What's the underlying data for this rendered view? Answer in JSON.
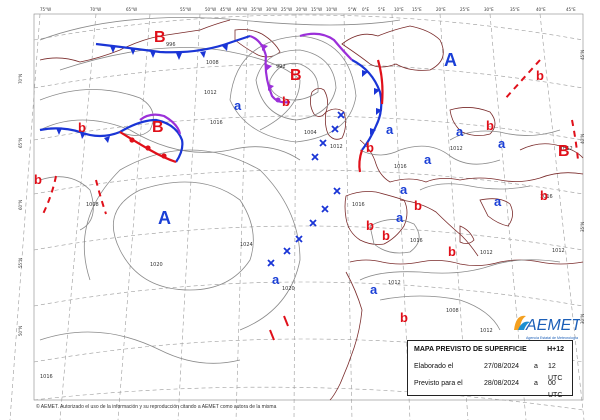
{
  "top_labels": [
    "75°W",
    "70°W",
    "65°W",
    "55°W",
    "50°W",
    "45°W",
    "40°W",
    "35°W",
    "30°W",
    "25°W",
    "20°W",
    "15°W",
    "10°W",
    "5°W",
    "0°E",
    "5°E",
    "10°E",
    "15°E",
    "20°E",
    "25°E",
    "30°E",
    "35°E",
    "40°E",
    "45°E"
  ],
  "side_labels": [
    "70°N",
    "65°N",
    "60°N",
    "55°N",
    "50°N",
    "45°N",
    "40°N",
    "35°N",
    "30°N"
  ],
  "pressure_centers": [
    {
      "letter": "A",
      "kind": "high",
      "big": true
    },
    {
      "letter": "A",
      "kind": "high",
      "big": true
    },
    {
      "letter": "B",
      "kind": "low",
      "big": true
    },
    {
      "letter": "B",
      "kind": "low",
      "big": true
    },
    {
      "letter": "B",
      "kind": "low",
      "big": true
    },
    {
      "letter": "B",
      "kind": "low",
      "big": true
    },
    {
      "letter": "b",
      "kind": "low",
      "big": false
    },
    {
      "letter": "b",
      "kind": "low",
      "big": false
    },
    {
      "letter": "b",
      "kind": "low",
      "big": false
    },
    {
      "letter": "b",
      "kind": "low",
      "big": false
    },
    {
      "letter": "b",
      "kind": "low",
      "big": false
    },
    {
      "letter": "b",
      "kind": "low",
      "big": false
    },
    {
      "letter": "b",
      "kind": "low",
      "big": false
    },
    {
      "letter": "b",
      "kind": "low",
      "big": false
    },
    {
      "letter": "b",
      "kind": "low",
      "big": false
    },
    {
      "letter": "b",
      "kind": "low",
      "big": false
    },
    {
      "letter": "b",
      "kind": "low",
      "big": false
    },
    {
      "letter": "b",
      "kind": "low",
      "big": false
    },
    {
      "letter": "a",
      "kind": "high",
      "big": false
    },
    {
      "letter": "a",
      "kind": "high",
      "big": false
    },
    {
      "letter": "a",
      "kind": "high",
      "big": false
    },
    {
      "letter": "a",
      "kind": "high",
      "big": false
    },
    {
      "letter": "a",
      "kind": "high",
      "big": false
    },
    {
      "letter": "a",
      "kind": "high",
      "big": false
    },
    {
      "letter": "a",
      "kind": "high",
      "big": false
    },
    {
      "letter": "a",
      "kind": "high",
      "big": false
    },
    {
      "letter": "a",
      "kind": "high",
      "big": false
    },
    {
      "letter": "a",
      "kind": "high",
      "big": false
    }
  ],
  "isobar_labels": [
    "996",
    "992",
    "1008",
    "1012",
    "1004",
    "1016",
    "1020",
    "1012",
    "1024",
    "1008",
    "1012",
    "1016",
    "1016",
    "1016",
    "1012",
    "1012",
    "1008",
    "1012",
    "1016",
    "1012",
    "1020",
    "1016",
    "1012"
  ],
  "info_panel": {
    "title": "MAPA PREVISTO DE SUPERFICIE",
    "forecast_step": "H+12",
    "rows": [
      {
        "label": "Elaborado el",
        "date": "27/08/2024",
        "sep": "a",
        "time": "12 UTC"
      },
      {
        "label": "Previsto para el",
        "date": "28/08/2024",
        "sep": "a",
        "time": "00 UTC"
      }
    ]
  },
  "logo": {
    "name": "AEMET",
    "subtitle": "Agencia Estatal de Meteorología"
  },
  "footer": "© AEMET. Autorizado el uso de la información y su reproducción citando a AEMET como autora de la misma",
  "colors": {
    "high": "#1a3fd6",
    "low": "#e0101a",
    "cold_front": "#1a35d6",
    "warm_front": "#e0101a",
    "occluded_front": "#9b30d9",
    "coast": "#7a2b2b",
    "isobar": "#8a8a8a"
  }
}
